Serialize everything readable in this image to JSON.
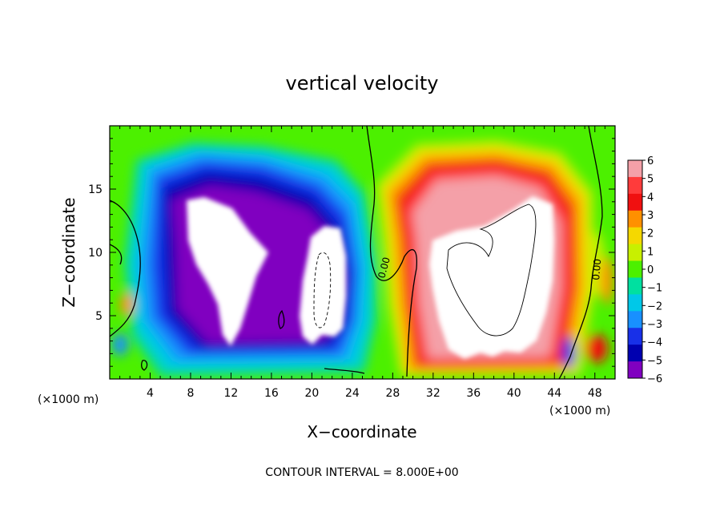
{
  "chart_data": {
    "type": "heatmap",
    "title": "vertical velocity",
    "xlabel": "X−coordinate",
    "ylabel": "Z−coordinate",
    "x_unit_left": "(×1000 m)",
    "x_unit_right": "(×1000 m)",
    "footer": "CONTOUR INTERVAL = 8.000E+00",
    "xlim": [
      0,
      50
    ],
    "ylim": [
      0,
      20
    ],
    "x_ticks": [
      4,
      8,
      12,
      16,
      20,
      24,
      28,
      32,
      36,
      40,
      44,
      48
    ],
    "x_tick_labels": [
      "4",
      "8",
      "12",
      "16",
      "20",
      "24",
      "28",
      "32",
      "36",
      "40",
      "44",
      "48"
    ],
    "y_ticks": [
      5,
      10,
      15
    ],
    "y_tick_labels": [
      "5",
      "10",
      "15"
    ],
    "colorbar": {
      "levels": [
        6,
        5,
        4,
        3,
        2,
        1,
        0,
        -1,
        -2,
        -3,
        -4,
        -5,
        -6
      ],
      "labels": [
        "6",
        "5",
        "4",
        "3",
        "2",
        "1",
        "0",
        "−1",
        "−2",
        "−3",
        "−4",
        "−5",
        "−6"
      ],
      "colors": [
        "#f4a0a8",
        "#ff3b3b",
        "#f01010",
        "#ff9000",
        "#f5d800",
        "#c8f000",
        "#4cf000",
        "#00e0a0",
        "#00c8e8",
        "#1890ff",
        "#1830e8",
        "#0000b0",
        "#8000c0"
      ]
    },
    "contour_labels": [
      "0.00",
      "0.00"
    ],
    "regions": [
      {
        "name": "updraft",
        "x_range": [
          29,
          45
        ],
        "z_range": [
          1,
          19
        ],
        "peak": 6
      },
      {
        "name": "downdraft-left",
        "x_range": [
          5,
          19
        ],
        "z_range": [
          2,
          18
        ],
        "peak": -6
      },
      {
        "name": "downdraft-center",
        "x_range": [
          18,
          26
        ],
        "z_range": [
          2,
          12
        ],
        "peak": -6
      }
    ],
    "grid": false
  }
}
